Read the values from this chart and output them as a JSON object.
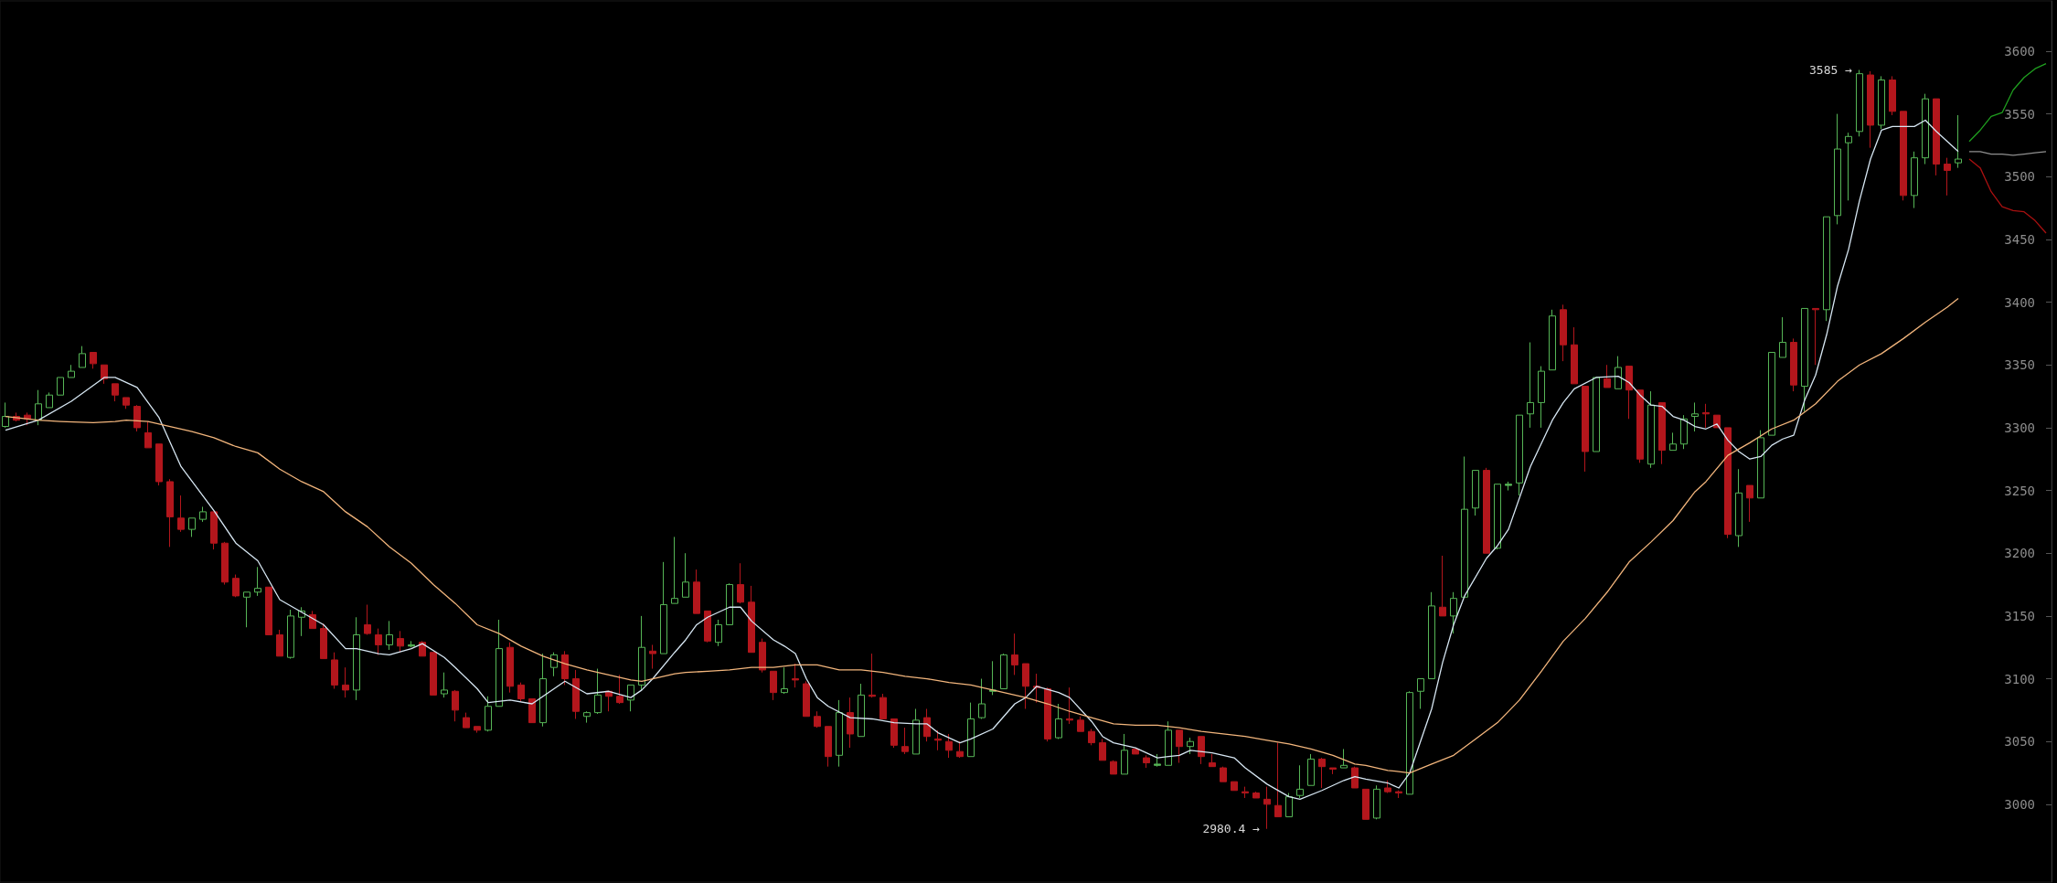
{
  "chart_data": {
    "type": "candlestick",
    "tick_labels": "y",
    "marker": "none",
    "categories": [
      null,
      null,
      null,
      null,
      null,
      null,
      null,
      null,
      null,
      null,
      null,
      null,
      null,
      null,
      null,
      null,
      null,
      null,
      null,
      null,
      null,
      null,
      null,
      null,
      null,
      null,
      null,
      null,
      null,
      null,
      null,
      null,
      null,
      null,
      null,
      null,
      null,
      null,
      null,
      null,
      null,
      null,
      null,
      null,
      null,
      null,
      null,
      null,
      null,
      null,
      null,
      null,
      null,
      null,
      null,
      null,
      null,
      null,
      null,
      null,
      null,
      null,
      null,
      null,
      null,
      null,
      null,
      null,
      null,
      null,
      null,
      null,
      null,
      null,
      null,
      null,
      null,
      null,
      null,
      null,
      null,
      null,
      null,
      null,
      null,
      null,
      null,
      null,
      null,
      null,
      null,
      null,
      null,
      null,
      null,
      null,
      null,
      null,
      null,
      null,
      null,
      null,
      null,
      null,
      null,
      null,
      null,
      null,
      null,
      null,
      null,
      null,
      null,
      null,
      null,
      null,
      null,
      null,
      null,
      null,
      null,
      null,
      null,
      null,
      null,
      null,
      null,
      null,
      null,
      null,
      null,
      null,
      null,
      null,
      null,
      null,
      null,
      null,
      null,
      null,
      null,
      null,
      null,
      null,
      null,
      null,
      null,
      null,
      null,
      null,
      null,
      null,
      null,
      null,
      null,
      null,
      null,
      null,
      null,
      null,
      null,
      null,
      null,
      null,
      null,
      null,
      null,
      null,
      null,
      null,
      null,
      null,
      null,
      null,
      null,
      null,
      null,
      null,
      null,
      null,
      null,
      null,
      null,
      null,
      null,
      null,
      null
    ],
    "ohlc": [
      [
        3301,
        3320,
        3300,
        3309
      ],
      [
        3309,
        3312,
        3305,
        3306
      ],
      [
        3310,
        3312,
        3302,
        3307
      ],
      [
        3306,
        3330,
        3302,
        3319
      ],
      [
        3316,
        3328,
        3316,
        3326
      ],
      [
        3326,
        3340,
        3326,
        3340
      ],
      [
        3340,
        3350,
        3340,
        3345
      ],
      [
        3348,
        3365,
        3348,
        3359
      ],
      [
        3360,
        3360,
        3347,
        3351
      ],
      [
        3350,
        3350,
        3335,
        3339
      ],
      [
        3335,
        3335,
        3321,
        3326
      ],
      [
        3324,
        3324,
        3315,
        3318
      ],
      [
        3317,
        3318,
        3297,
        3300
      ],
      [
        3296,
        3305,
        3284,
        3284
      ],
      [
        3287,
        3287,
        3254,
        3257
      ],
      [
        3257,
        3259,
        3205,
        3229
      ],
      [
        3228,
        3246,
        3217,
        3219
      ],
      [
        3219,
        3228,
        3213,
        3228
      ],
      [
        3227,
        3237,
        3225,
        3233
      ],
      [
        3233,
        3233,
        3203,
        3208
      ],
      [
        3208,
        3209,
        3175,
        3177
      ],
      [
        3180,
        3183,
        3165,
        3166
      ],
      [
        3165,
        3169,
        3141,
        3169
      ],
      [
        3169,
        3189,
        3166,
        3172
      ],
      [
        3173,
        3173,
        3135,
        3135
      ],
      [
        3135,
        3139,
        3118,
        3118
      ],
      [
        3117,
        3155,
        3116,
        3150
      ],
      [
        3149,
        3157,
        3134,
        3154
      ],
      [
        3151,
        3154,
        3140,
        3140
      ],
      [
        3140,
        3144,
        3116,
        3116
      ],
      [
        3115,
        3121,
        3092,
        3095
      ],
      [
        3095,
        3109,
        3085,
        3091
      ],
      [
        3091,
        3149,
        3083,
        3135
      ],
      [
        3143,
        3159,
        3135,
        3136
      ],
      [
        3135,
        3140,
        3119,
        3127
      ],
      [
        3127,
        3146,
        3123,
        3135
      ],
      [
        3132,
        3138,
        3121,
        3126
      ],
      [
        3126,
        3130,
        3125,
        3127
      ],
      [
        3129,
        3130,
        3118,
        3118
      ],
      [
        3121,
        3121,
        3087,
        3087
      ],
      [
        3088,
        3105,
        3085,
        3091
      ],
      [
        3090,
        3091,
        3066,
        3075
      ],
      [
        3069,
        3073,
        3061,
        3061
      ],
      [
        3062,
        3062,
        3057,
        3059
      ],
      [
        3059,
        3086,
        3058,
        3078
      ],
      [
        3078,
        3147,
        3078,
        3124
      ],
      [
        3125,
        3129,
        3089,
        3094
      ],
      [
        3095,
        3097,
        3082,
        3084
      ],
      [
        3084,
        3084,
        3065,
        3065
      ],
      [
        3065,
        3120,
        3062,
        3100
      ],
      [
        3109,
        3121,
        3102,
        3119
      ],
      [
        3119,
        3122,
        3095,
        3100
      ],
      [
        3100,
        3107,
        3068,
        3074
      ],
      [
        3070,
        3074,
        3065,
        3073
      ],
      [
        3073,
        3108,
        3072,
        3087
      ],
      [
        3090,
        3090,
        3074,
        3086
      ],
      [
        3086,
        3103,
        3080,
        3081
      ],
      [
        3083,
        3095,
        3074,
        3095
      ],
      [
        3095,
        3150,
        3091,
        3125
      ],
      [
        3122,
        3127,
        3108,
        3120
      ],
      [
        3120,
        3193,
        3120,
        3159
      ],
      [
        3160,
        3213,
        3160,
        3164
      ],
      [
        3165,
        3200,
        3165,
        3177
      ],
      [
        3177,
        3187,
        3152,
        3152
      ],
      [
        3154,
        3154,
        3129,
        3130
      ],
      [
        3129,
        3147,
        3126,
        3143
      ],
      [
        3143,
        3176,
        3143,
        3175
      ],
      [
        3175,
        3192,
        3160,
        3161
      ],
      [
        3161,
        3174,
        3121,
        3121
      ],
      [
        3129,
        3132,
        3105,
        3107
      ],
      [
        3106,
        3106,
        3083,
        3089
      ],
      [
        3089,
        3109,
        3088,
        3092
      ],
      [
        3100,
        3112,
        3093,
        3099
      ],
      [
        3096,
        3098,
        3070,
        3070
      ],
      [
        3070,
        3074,
        3061,
        3062
      ],
      [
        3062,
        3062,
        3030,
        3038
      ],
      [
        3039,
        3083,
        3030,
        3073
      ],
      [
        3073,
        3085,
        3045,
        3056
      ],
      [
        3054,
        3096,
        3054,
        3087
      ],
      [
        3087,
        3120,
        3085,
        3086
      ],
      [
        3085,
        3088,
        3068,
        3068
      ],
      [
        3068,
        3068,
        3045,
        3047
      ],
      [
        3046,
        3061,
        3040,
        3042
      ],
      [
        3040,
        3076,
        3040,
        3067
      ],
      [
        3069,
        3076,
        3050,
        3054
      ],
      [
        3052,
        3059,
        3043,
        3051
      ],
      [
        3050,
        3056,
        3037,
        3043
      ],
      [
        3042,
        3050,
        3037,
        3038
      ],
      [
        3038,
        3081,
        3038,
        3068
      ],
      [
        3069,
        3100,
        3068,
        3080
      ],
      [
        3090,
        3114,
        3087,
        3091
      ],
      [
        3092,
        3120,
        3092,
        3119
      ],
      [
        3119,
        3136,
        3103,
        3111
      ],
      [
        3112,
        3112,
        3076,
        3094
      ],
      [
        3094,
        3104,
        3081,
        3093
      ],
      [
        3092,
        3093,
        3050,
        3052
      ],
      [
        3053,
        3080,
        3052,
        3068
      ],
      [
        3068,
        3093,
        3064,
        3067
      ],
      [
        3067,
        3070,
        3058,
        3058
      ],
      [
        3058,
        3060,
        3047,
        3049
      ],
      [
        3049,
        3052,
        3035,
        3035
      ],
      [
        3034,
        3035,
        3024,
        3024
      ],
      [
        3024,
        3056,
        3024,
        3043
      ],
      [
        3044,
        3044,
        3040,
        3040
      ],
      [
        3037,
        3039,
        3029,
        3033
      ],
      [
        3031,
        3040,
        3030,
        3032
      ],
      [
        3031,
        3066,
        3031,
        3059
      ],
      [
        3059,
        3059,
        3033,
        3046
      ],
      [
        3046,
        3053,
        3040,
        3050
      ],
      [
        3054,
        3054,
        3032,
        3038
      ],
      [
        3033,
        3040,
        3030,
        3030
      ],
      [
        3029,
        3030,
        3018,
        3018
      ],
      [
        3018,
        3018,
        3011,
        3011
      ],
      [
        3010,
        3014,
        3005,
        3009
      ],
      [
        3009,
        3010,
        3005,
        3005
      ],
      [
        3004,
        3014,
        2980.4,
        3000
      ],
      [
        2999,
        3049,
        2990,
        2990
      ],
      [
        2990,
        3009,
        2990,
        3006
      ],
      [
        3007,
        3031,
        3005,
        3012
      ],
      [
        3015,
        3040,
        3015,
        3036
      ],
      [
        3036,
        3037,
        3013,
        3030
      ],
      [
        3029,
        3029,
        3024,
        3028
      ],
      [
        3029,
        3044,
        3029,
        3031
      ],
      [
        3029,
        3030,
        3013,
        3013
      ],
      [
        3012,
        3012,
        2988,
        2988
      ],
      [
        2989,
        3015,
        2988,
        3012
      ],
      [
        3013,
        3019,
        3009,
        3010
      ],
      [
        3010,
        3011,
        3005,
        3009
      ],
      [
        3008,
        3090,
        3008,
        3089
      ],
      [
        3090,
        3100,
        3076,
        3100
      ],
      [
        3100,
        3169,
        3100,
        3158
      ],
      [
        3157,
        3198,
        3150,
        3150
      ],
      [
        3150,
        3169,
        3136,
        3164
      ],
      [
        3165,
        3277,
        3165,
        3235
      ],
      [
        3236,
        3266,
        3230,
        3266
      ],
      [
        3266,
        3268,
        3200,
        3200
      ],
      [
        3204,
        3255,
        3203,
        3255
      ],
      [
        3254,
        3257,
        3250,
        3255
      ],
      [
        3256,
        3310,
        3246,
        3310
      ],
      [
        3311,
        3368,
        3300,
        3320
      ],
      [
        3320,
        3349,
        3300,
        3345
      ],
      [
        3346,
        3394,
        3346,
        3389
      ],
      [
        3394,
        3398,
        3353,
        3366
      ],
      [
        3366,
        3380,
        3335,
        3335
      ],
      [
        3333,
        3333,
        3265,
        3281
      ],
      [
        3281,
        3340,
        3281,
        3340
      ],
      [
        3339,
        3350,
        3332,
        3332
      ],
      [
        3331,
        3357,
        3331,
        3348
      ],
      [
        3349,
        3349,
        3307,
        3330
      ],
      [
        3330,
        3330,
        3272,
        3275
      ],
      [
        3271,
        3329,
        3268,
        3318
      ],
      [
        3320,
        3320,
        3271,
        3282
      ],
      [
        3282,
        3296,
        3282,
        3287
      ],
      [
        3287,
        3310,
        3283,
        3307
      ],
      [
        3309,
        3320,
        3297,
        3311
      ],
      [
        3312,
        3319,
        3300,
        3311
      ],
      [
        3310,
        3310,
        3300,
        3300
      ],
      [
        3300,
        3300,
        3212,
        3215
      ],
      [
        3214,
        3267,
        3205,
        3248
      ],
      [
        3254,
        3254,
        3225,
        3244
      ],
      [
        3244,
        3298,
        3244,
        3292
      ],
      [
        3294,
        3360,
        3294,
        3360
      ],
      [
        3356,
        3388,
        3356,
        3368
      ],
      [
        3368,
        3371,
        3329,
        3334
      ],
      [
        3333,
        3395,
        3313,
        3395
      ],
      [
        3395,
        3395,
        3350,
        3394
      ],
      [
        3394,
        3468,
        3385,
        3468
      ],
      [
        3469,
        3550,
        3462,
        3522
      ],
      [
        3527,
        3535,
        3481,
        3532
      ],
      [
        3536,
        3585,
        3532,
        3582
      ],
      [
        3581,
        3584,
        3523,
        3541
      ],
      [
        3541,
        3580,
        3538,
        3577
      ],
      [
        3577,
        3580,
        3549,
        3552
      ],
      [
        3552,
        3552,
        3481,
        3485
      ],
      [
        3485,
        3520,
        3475,
        3515
      ],
      [
        3515,
        3566,
        3510,
        3562
      ],
      [
        3562,
        3562,
        3501,
        3510
      ],
      [
        3510,
        3515,
        3485,
        3505
      ],
      [
        3511,
        3549,
        3507,
        3514
      ],
      null,
      null,
      null,
      null,
      null,
      null,
      null,
      null
    ],
    "colors": [
      "#56b556",
      "#b3161c",
      "#b3161c",
      "#56b556",
      "#56b556",
      "#56b556",
      "#56b556",
      "#56b556",
      "#b3161c",
      "#b3161c",
      "#b3161c",
      "#b3161c",
      "#b3161c",
      "#b3161c",
      "#b3161c",
      "#b3161c",
      "#b3161c",
      "#56b556",
      "#56b556",
      "#b3161c",
      "#b3161c",
      "#b3161c",
      "#56b556",
      "#56b556",
      "#b3161c",
      "#b3161c",
      "#56b556",
      "#56b556",
      "#b3161c",
      "#b3161c",
      "#b3161c",
      "#b3161c",
      "#56b556",
      "#b3161c",
      "#b3161c",
      "#56b556",
      "#b3161c",
      "#56b556",
      "#b3161c",
      "#b3161c",
      "#56b556",
      "#b3161c",
      "#b3161c",
      "#b3161c",
      "#56b556",
      "#56b556",
      "#b3161c",
      "#b3161c",
      "#b3161c",
      "#56b556",
      "#56b556",
      "#b3161c",
      "#b3161c",
      "#56b556",
      "#56b556",
      "#b3161c",
      "#b3161c",
      "#56b556",
      "#56b556",
      "#b3161c",
      "#56b556",
      "#56b556",
      "#56b556",
      "#b3161c",
      "#b3161c",
      "#56b556",
      "#56b556",
      "#b3161c",
      "#b3161c",
      "#b3161c",
      "#b3161c",
      "#56b556",
      "#b3161c",
      "#b3161c",
      "#b3161c",
      "#b3161c",
      "#56b556",
      "#b3161c",
      "#56b556",
      "#b3161c",
      "#b3161c",
      "#b3161c",
      "#b3161c",
      "#56b556",
      "#b3161c",
      "#b3161c",
      "#b3161c",
      "#b3161c",
      "#56b556",
      "#56b556",
      "#56b556",
      "#56b556",
      "#b3161c",
      "#b3161c",
      "#b3161c",
      "#b3161c",
      "#56b556",
      "#b3161c",
      "#b3161c",
      "#b3161c",
      "#b3161c",
      "#b3161c",
      "#56b556",
      "#b3161c",
      "#b3161c",
      "#56b556",
      "#56b556",
      "#b3161c",
      "#56b556",
      "#b3161c",
      "#b3161c",
      "#b3161c",
      "#b3161c",
      "#b3161c",
      "#b3161c",
      "#b3161c",
      "#b3161c",
      "#56b556",
      "#56b556",
      "#56b556",
      "#b3161c",
      "#b3161c",
      "#56b556",
      "#b3161c",
      "#b3161c",
      "#56b556",
      "#b3161c",
      "#b3161c",
      "#56b556",
      "#56b556",
      "#56b556",
      "#b3161c",
      "#56b556",
      "#56b556",
      "#56b556",
      "#b3161c",
      "#56b556",
      "#56b556",
      "#56b556",
      "#56b556",
      "#56b556",
      "#56b556",
      "#b3161c",
      "#b3161c",
      "#b3161c",
      "#56b556",
      "#b3161c",
      "#56b556",
      "#b3161c",
      "#b3161c",
      "#56b556",
      "#b3161c",
      "#56b556",
      "#56b556",
      "#56b556",
      "#b3161c",
      "#b3161c",
      "#b3161c",
      "#56b556",
      "#b3161c",
      "#56b556",
      "#56b556",
      "#56b556",
      "#b3161c",
      "#56b556",
      "#b3161c",
      "#56b556",
      "#56b556",
      "#56b556",
      "#56b556",
      "#b3161c",
      "#56b556",
      "#b3161c",
      "#b3161c",
      "#56b556",
      "#56b556",
      "#b3161c",
      "#b3161c",
      "#56b556",
      null,
      null,
      null,
      null,
      null,
      null,
      null,
      null
    ],
    "ylim": [
      2938,
      3640
    ],
    "yticks": [
      3000,
      3050,
      3100,
      3150,
      3200,
      3250,
      3300,
      3350,
      3400,
      3450,
      3500,
      3550,
      3600
    ],
    "annotations": [
      "3585 →",
      "2980.4 →"
    ],
    "series": [
      {
        "type": "line",
        "color": "#d6e6f2",
        "values": [
          3298,
          null,
          null,
          3306,
          null,
          null,
          3321,
          null,
          null,
          3340,
          3340,
          null,
          3332,
          null,
          3308,
          null,
          3269,
          null,
          null,
          3234,
          null,
          3208,
          null,
          3194,
          null,
          3163,
          null,
          3153,
          null,
          3143,
          null,
          3124,
          3124,
          null,
          3120,
          3119,
          null,
          3124,
          3128,
          null,
          3117,
          3109,
          null,
          3092,
          3081,
          null,
          3083,
          null,
          3080,
          null,
          3092,
          3098,
          null,
          3088,
          null,
          3090,
          null,
          3085,
          3091,
          3100,
          null,
          3121,
          3131,
          3143,
          3149,
          null,
          3157,
          3157,
          3146,
          null,
          3131,
          3126,
          3120,
          3100,
          3085,
          3078,
          null,
          3069,
          null,
          3068,
          null,
          3065,
          null,
          3064,
          3064,
          3057,
          null,
          3049,
          3052,
          null,
          3060,
          null,
          3080,
          3085,
          3094,
          null,
          3089,
          3085,
          null,
          3066,
          3054,
          3049,
          null,
          3045,
          null,
          3037,
          3038,
          3039,
          3043,
          null,
          3041,
          null,
          3037,
          3029,
          null,
          3016,
          null,
          3006,
          3004,
          null,
          3011,
          null,
          3019,
          3022,
          3020,
          null,
          3017,
          3013,
          3025,
          null,
          3076,
          3113,
          3143,
          3166,
          null,
          3196,
          3206,
          3219,
          null,
          3269,
          null,
          3306,
          3320,
          3331,
          null,
          3340,
          null,
          3341,
          3336,
          3326,
          3318,
          3317,
          3309,
          3306,
          3301,
          3299,
          3303,
          3290,
          3281,
          3275,
          3277,
          3286,
          3291,
          3294,
          3322,
          3342,
          3374,
          3413,
          3442,
          3481,
          3514,
          3537,
          3540,
          3540,
          3540,
          3545,
          3536,
          3528,
          3520,
          null,
          null,
          null,
          null,
          null,
          null,
          null,
          null
        ]
      },
      {
        "type": "line",
        "color": "#f2b57c",
        "values": [
          3309,
          null,
          null,
          3306,
          null,
          3305,
          null,
          null,
          3304,
          null,
          3305,
          3306,
          null,
          3305,
          null,
          3301,
          null,
          3297,
          null,
          3292,
          null,
          3285,
          null,
          3280,
          null,
          3267,
          null,
          3257,
          null,
          3249,
          null,
          3233,
          null,
          3221,
          null,
          3205,
          null,
          3192,
          null,
          3175,
          null,
          3160,
          null,
          3143,
          null,
          3136,
          null,
          3126,
          null,
          3118,
          null,
          3112,
          null,
          3107,
          null,
          3103,
          null,
          3099,
          3098,
          3100,
          null,
          3104,
          3105,
          null,
          3106,
          null,
          3107,
          null,
          3109,
          null,
          3109,
          null,
          3111,
          null,
          3111,
          null,
          3107,
          null,
          3107,
          null,
          3105,
          null,
          3102,
          null,
          3100,
          null,
          3097,
          null,
          3095,
          null,
          3091,
          null,
          3087,
          3085,
          null,
          3080,
          null,
          3074,
          null,
          3069,
          null,
          3064,
          null,
          3063,
          null,
          3063,
          null,
          3061,
          null,
          3058,
          null,
          3056,
          null,
          3054,
          null,
          3051,
          null,
          3048,
          null,
          3044,
          null,
          3039,
          null,
          3032,
          3031,
          null,
          3027,
          null,
          3025,
          null,
          3032,
          null,
          3039,
          null,
          3052,
          null,
          3065,
          null,
          3083,
          null,
          3106,
          null,
          3130,
          null,
          3148,
          null,
          3169,
          null,
          3193,
          null,
          3209,
          null,
          3226,
          null,
          3249,
          3257,
          null,
          3278,
          null,
          3288,
          null,
          3299,
          null,
          3306,
          null,
          3319,
          null,
          3337,
          null,
          3350,
          null,
          3359,
          null,
          3371,
          null,
          3384,
          null,
          3396,
          3403,
          null,
          null,
          null,
          null,
          null,
          null,
          null,
          null
        ]
      },
      {
        "type": "line",
        "color": "#1f9e1f",
        "values": [
          null,
          null,
          null,
          null,
          null,
          null,
          null,
          null,
          null,
          null,
          null,
          null,
          null,
          null,
          null,
          null,
          null,
          null,
          null,
          null,
          null,
          null,
          null,
          null,
          null,
          null,
          null,
          null,
          null,
          null,
          null,
          null,
          null,
          null,
          null,
          null,
          null,
          null,
          null,
          null,
          null,
          null,
          null,
          null,
          null,
          null,
          null,
          null,
          null,
          null,
          null,
          null,
          null,
          null,
          null,
          null,
          null,
          null,
          null,
          null,
          null,
          null,
          null,
          null,
          null,
          null,
          null,
          null,
          null,
          null,
          null,
          null,
          null,
          null,
          null,
          null,
          null,
          null,
          null,
          null,
          null,
          null,
          null,
          null,
          null,
          null,
          null,
          null,
          null,
          null,
          null,
          null,
          null,
          null,
          null,
          null,
          null,
          null,
          null,
          null,
          null,
          null,
          null,
          null,
          null,
          null,
          null,
          null,
          null,
          null,
          null,
          null,
          null,
          null,
          null,
          null,
          null,
          null,
          null,
          null,
          null,
          null,
          null,
          null,
          null,
          null,
          null,
          null,
          null,
          null,
          null,
          null,
          null,
          null,
          null,
          null,
          null,
          null,
          null,
          null,
          null,
          null,
          null,
          null,
          null,
          null,
          null,
          null,
          null,
          null,
          null,
          null,
          null,
          null,
          null,
          null,
          null,
          null,
          null,
          null,
          null,
          null,
          null,
          null,
          null,
          null,
          null,
          null,
          null,
          null,
          null,
          null,
          null,
          null,
          null,
          null,
          null,
          null,
          null,
          3528,
          3537,
          3548,
          3551,
          3569,
          3579,
          3586,
          3590
        ]
      },
      {
        "type": "line",
        "color": "#8f8f8f",
        "values": [
          null,
          null,
          null,
          null,
          null,
          null,
          null,
          null,
          null,
          null,
          null,
          null,
          null,
          null,
          null,
          null,
          null,
          null,
          null,
          null,
          null,
          null,
          null,
          null,
          null,
          null,
          null,
          null,
          null,
          null,
          null,
          null,
          null,
          null,
          null,
          null,
          null,
          null,
          null,
          null,
          null,
          null,
          null,
          null,
          null,
          null,
          null,
          null,
          null,
          null,
          null,
          null,
          null,
          null,
          null,
          null,
          null,
          null,
          null,
          null,
          null,
          null,
          null,
          null,
          null,
          null,
          null,
          null,
          null,
          null,
          null,
          null,
          null,
          null,
          null,
          null,
          null,
          null,
          null,
          null,
          null,
          null,
          null,
          null,
          null,
          null,
          null,
          null,
          null,
          null,
          null,
          null,
          null,
          null,
          null,
          null,
          null,
          null,
          null,
          null,
          null,
          null,
          null,
          null,
          null,
          null,
          null,
          null,
          null,
          null,
          null,
          null,
          null,
          null,
          null,
          null,
          null,
          null,
          null,
          null,
          null,
          null,
          null,
          null,
          null,
          null,
          null,
          null,
          null,
          null,
          null,
          null,
          null,
          null,
          null,
          null,
          null,
          null,
          null,
          null,
          null,
          null,
          null,
          null,
          null,
          null,
          null,
          null,
          null,
          null,
          null,
          null,
          null,
          null,
          null,
          null,
          null,
          null,
          null,
          null,
          null,
          null,
          null,
          null,
          null,
          null,
          null,
          null,
          null,
          null,
          null,
          null,
          null,
          null,
          null,
          null,
          null,
          null,
          null,
          3520,
          3520,
          3518,
          3518,
          3517,
          3518,
          3519,
          3520
        ]
      },
      {
        "type": "line",
        "color": "#a81010",
        "values": [
          null,
          null,
          null,
          null,
          null,
          null,
          null,
          null,
          null,
          null,
          null,
          null,
          null,
          null,
          null,
          null,
          null,
          null,
          null,
          null,
          null,
          null,
          null,
          null,
          null,
          null,
          null,
          null,
          null,
          null,
          null,
          null,
          null,
          null,
          null,
          null,
          null,
          null,
          null,
          null,
          null,
          null,
          null,
          null,
          null,
          null,
          null,
          null,
          null,
          null,
          null,
          null,
          null,
          null,
          null,
          null,
          null,
          null,
          null,
          null,
          null,
          null,
          null,
          null,
          null,
          null,
          null,
          null,
          null,
          null,
          null,
          null,
          null,
          null,
          null,
          null,
          null,
          null,
          null,
          null,
          null,
          null,
          null,
          null,
          null,
          null,
          null,
          null,
          null,
          null,
          null,
          null,
          null,
          null,
          null,
          null,
          null,
          null,
          null,
          null,
          null,
          null,
          null,
          null,
          null,
          null,
          null,
          null,
          null,
          null,
          null,
          null,
          null,
          null,
          null,
          null,
          null,
          null,
          null,
          null,
          null,
          null,
          null,
          null,
          null,
          null,
          null,
          null,
          null,
          null,
          null,
          null,
          null,
          null,
          null,
          null,
          null,
          null,
          null,
          null,
          null,
          null,
          null,
          null,
          null,
          null,
          null,
          null,
          null,
          null,
          null,
          null,
          null,
          null,
          null,
          null,
          null,
          null,
          null,
          null,
          null,
          null,
          null,
          null,
          null,
          null,
          null,
          null,
          null,
          null,
          null,
          null,
          null,
          null,
          null,
          null,
          null,
          null,
          null,
          3514,
          3507,
          3488,
          3476,
          3473,
          3472,
          3465,
          3455
        ]
      }
    ]
  }
}
